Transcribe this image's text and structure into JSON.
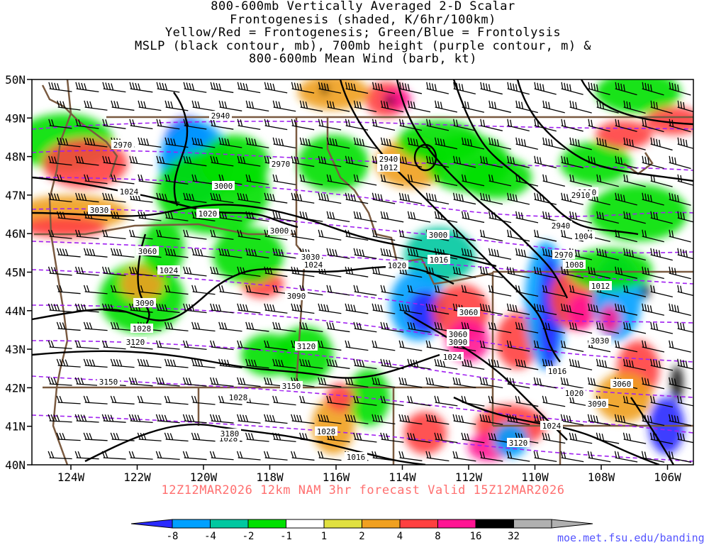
{
  "title": {
    "lines": [
      "800-600mb Vertically Averaged 2-D Scalar",
      "Frontogenesis (shaded, K/6hr/100km)",
      "Yellow/Red = Frontogenesis;  Green/Blue = Frontolysis",
      "MSLP (black contour, mb), 700mb height (purple contour, m) &",
      "800-600mb Mean Wind (barb, kt)"
    ]
  },
  "axes": {
    "latitude_labels": [
      "50N",
      "49N",
      "48N",
      "47N",
      "46N",
      "45N",
      "44N",
      "43N",
      "42N",
      "41N",
      "40N"
    ],
    "longitude_labels": [
      "124W",
      "122W",
      "120W",
      "118W",
      "116W",
      "114W",
      "112W",
      "110W",
      "108W",
      "106W"
    ]
  },
  "colors": {
    "-8": "#2a2aff",
    "-4": "#00a0ff",
    "-2": "#00c8a0",
    "-1": "#00e000",
    "1": "#ffffff",
    "2": "#e0e040",
    "4": "#f0a020",
    "8": "#ff4040",
    "16": "#ff1493",
    "32": "#000000",
    "max": "#b0b0b0",
    "mslp_contour": "#000000",
    "height_contour": "#a020f0",
    "borders": "#7a5a40",
    "barbs": "#000000"
  },
  "colorbar": {
    "tick_labels": [
      "-8",
      "-4",
      "-2",
      "-1",
      "1",
      "2",
      "4",
      "8",
      "16",
      "32"
    ]
  },
  "mslp_labels": [
    "1024",
    "1020",
    "1024",
    "1028",
    "1024",
    "1020",
    "1016",
    "1024",
    "1028",
    "1028",
    "1028",
    "1016",
    "1008",
    "1012",
    "1016",
    "1020",
    "1024",
    "1000",
    "1004",
    "1012"
  ],
  "height_labels": [
    "2940",
    "2970",
    "2970",
    "3000",
    "3030",
    "3000",
    "3060",
    "3030",
    "3000",
    "3060",
    "3090",
    "3120",
    "3090",
    "3120",
    "3150",
    "3150",
    "3180",
    "3060",
    "3090",
    "3030",
    "3060",
    "3090",
    "3120",
    "2940",
    "2970",
    "2940",
    "2910"
  ],
  "valid_time": "12Z12MAR2026  12km NAM 3hr forecast Valid 15Z12MAR2026",
  "credit": "moe.met.fsu.edu/banding"
}
